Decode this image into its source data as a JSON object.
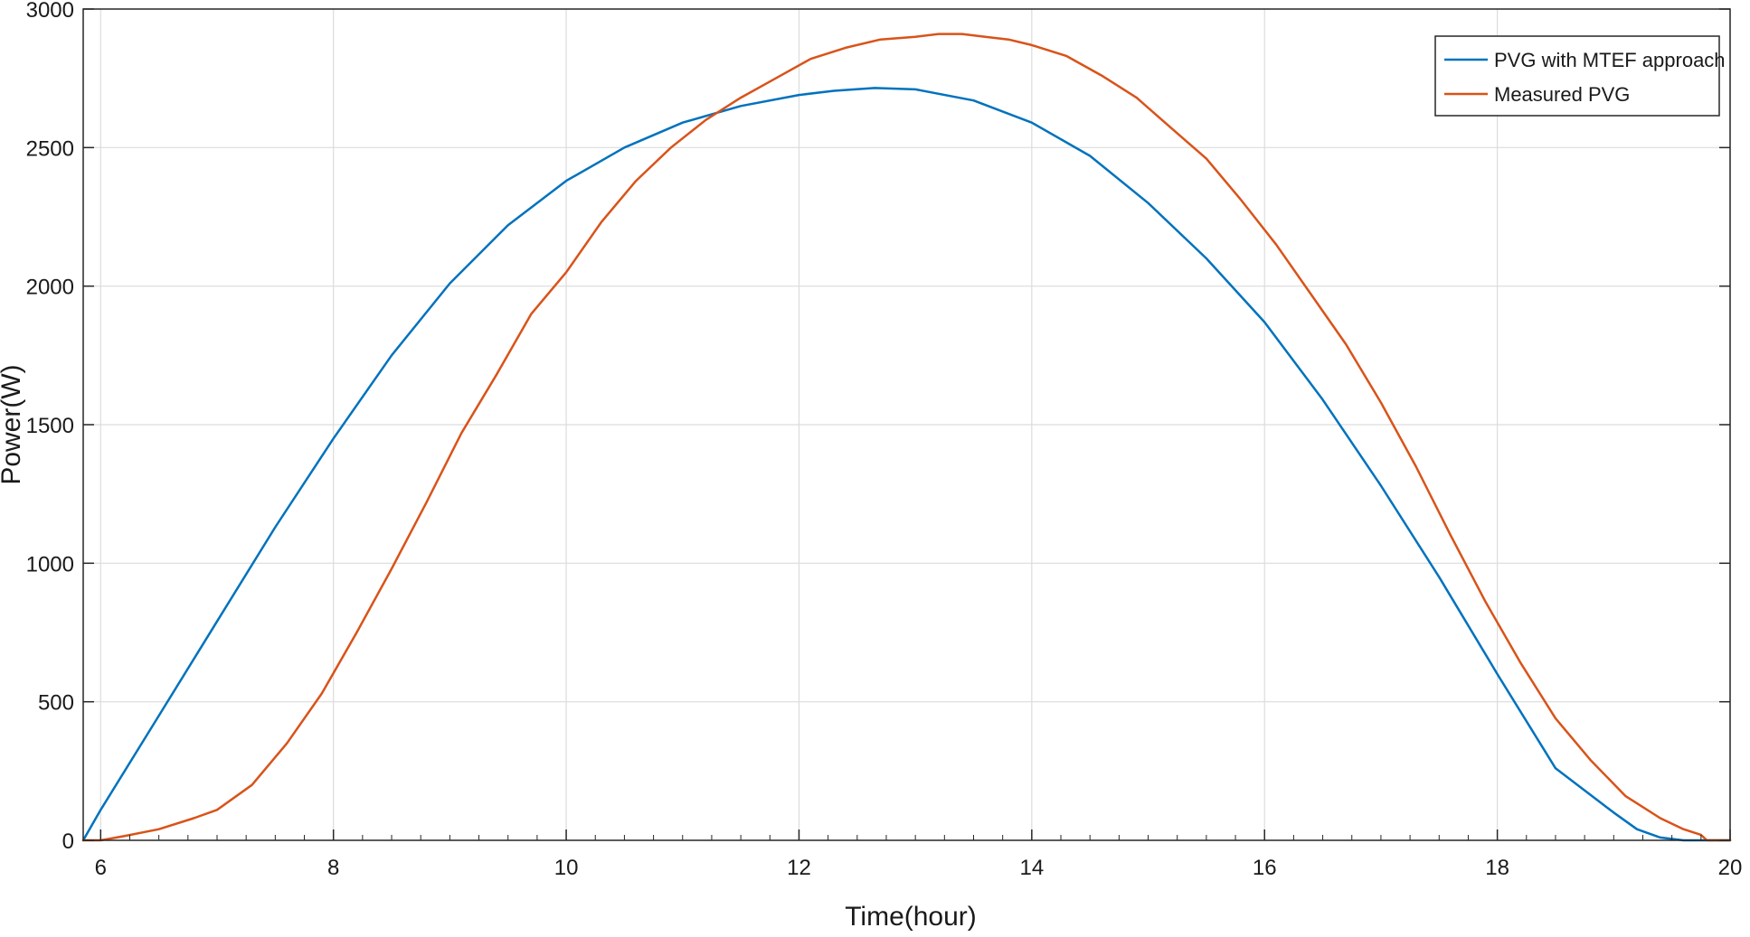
{
  "chart_data": {
    "type": "line",
    "title": "",
    "xlabel": "Time(hour)",
    "ylabel": "Power(W)",
    "xlim": [
      5.85,
      20
    ],
    "ylim": [
      0,
      3000
    ],
    "xticks": [
      6,
      8,
      10,
      12,
      14,
      16,
      18,
      20
    ],
    "yticks": [
      0,
      500,
      1000,
      1500,
      2000,
      2500,
      3000
    ],
    "grid": true,
    "legend": {
      "placement": "top-right"
    },
    "series": [
      {
        "name": "PVG with MTEF approach",
        "color": "#0072BD",
        "x": [
          5.85,
          6.0,
          6.5,
          7.0,
          7.5,
          8.0,
          8.5,
          9.0,
          9.5,
          10.0,
          10.5,
          11.0,
          11.5,
          12.0,
          12.3,
          12.65,
          13.0,
          13.5,
          14.0,
          14.5,
          15.0,
          15.5,
          16.0,
          16.5,
          17.0,
          17.5,
          18.0,
          18.5,
          19.0,
          19.2,
          19.4,
          19.6,
          20.0
        ],
        "y": [
          0,
          110,
          450,
          790,
          1130,
          1450,
          1750,
          2010,
          2220,
          2380,
          2500,
          2590,
          2650,
          2690,
          2705,
          2715,
          2710,
          2670,
          2590,
          2470,
          2300,
          2100,
          1870,
          1590,
          1280,
          950,
          600,
          260,
          100,
          40,
          10,
          0,
          0
        ]
      },
      {
        "name": "Measured PVG",
        "color": "#D95319",
        "x": [
          5.85,
          6.0,
          6.2,
          6.5,
          6.8,
          7.0,
          7.3,
          7.6,
          7.9,
          8.2,
          8.5,
          8.8,
          9.1,
          9.4,
          9.7,
          10.0,
          10.3,
          10.6,
          10.9,
          11.2,
          11.5,
          11.8,
          12.1,
          12.4,
          12.7,
          13.0,
          13.2,
          13.4,
          13.6,
          13.8,
          14.0,
          14.3,
          14.6,
          14.9,
          15.2,
          15.5,
          15.8,
          16.1,
          16.4,
          16.7,
          17.0,
          17.3,
          17.6,
          17.9,
          18.2,
          18.5,
          18.8,
          19.1,
          19.4,
          19.6,
          19.75,
          19.8,
          20.0
        ],
        "y": [
          0,
          0,
          15,
          40,
          80,
          110,
          200,
          350,
          530,
          750,
          980,
          1220,
          1470,
          1680,
          1900,
          2050,
          2230,
          2380,
          2500,
          2600,
          2680,
          2750,
          2820,
          2860,
          2890,
          2900,
          2910,
          2910,
          2900,
          2890,
          2870,
          2830,
          2760,
          2680,
          2570,
          2460,
          2310,
          2150,
          1970,
          1790,
          1580,
          1350,
          1100,
          860,
          640,
          440,
          290,
          160,
          80,
          40,
          20,
          0,
          0
        ]
      }
    ]
  }
}
